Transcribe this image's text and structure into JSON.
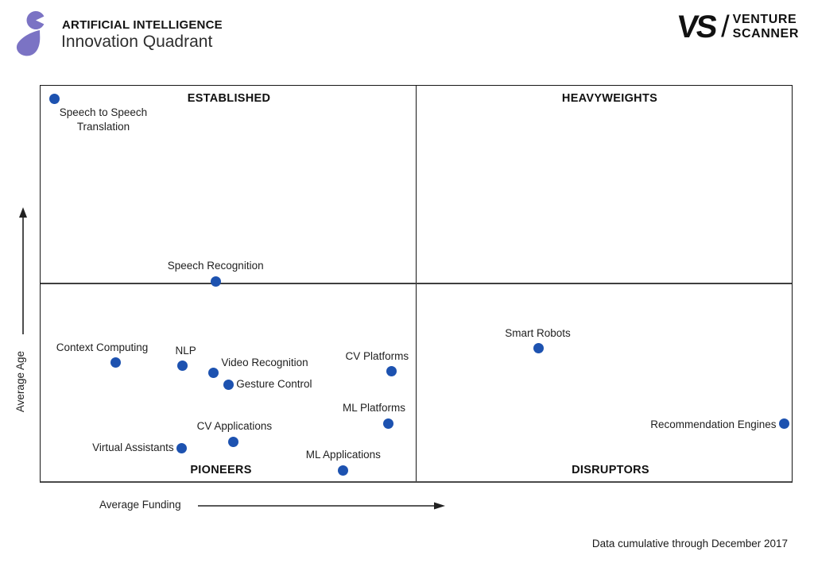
{
  "header": {
    "category": "ARTIFICIAL INTELLIGENCE",
    "title": "Innovation Quadrant",
    "logo_color": "#7b73c4",
    "vs_logo": {
      "mark": "VS",
      "slash": "/",
      "line1": "VENTURE",
      "line2": "SCANNER"
    }
  },
  "chart_data": {
    "type": "scatter",
    "title": "Artificial Intelligence Innovation Quadrant",
    "xlabel": "Average Funding",
    "ylabel": "Average Age",
    "xlim": [
      0,
      100
    ],
    "ylim": [
      0,
      100
    ],
    "x_divider": 50,
    "y_divider": 50,
    "grid": false,
    "legend": "none",
    "point_color": "#1d52b0",
    "quadrants": [
      {
        "position": "top-left",
        "label": "ESTABLISHED"
      },
      {
        "position": "top-right",
        "label": "HEAVYWEIGHTS"
      },
      {
        "position": "bottom-left",
        "label": "PIONEERS"
      },
      {
        "position": "bottom-right",
        "label": "DISRUPTORS"
      }
    ],
    "points": [
      {
        "label": "Speech to Speech Translation",
        "label_lines": [
          "Speech to Speech",
          "Translation"
        ],
        "x": 1.9,
        "y": 96.6,
        "placement": "below",
        "dx": 61
      },
      {
        "label": "Speech Recognition",
        "x": 23.3,
        "y": 50.6,
        "placement": "above",
        "dx": 0
      },
      {
        "label": "Context Computing",
        "x": 10.0,
        "y": 30.0,
        "placement": "above",
        "dx": -17
      },
      {
        "label": "NLP",
        "x": 18.9,
        "y": 29.2,
        "placement": "above",
        "dx": 4
      },
      {
        "label": "Video Recognition",
        "x": 23.0,
        "y": 27.4,
        "placement": "right",
        "dy": -13
      },
      {
        "label": "Gesture Control",
        "x": 25.0,
        "y": 24.4,
        "placement": "right",
        "dy": 0
      },
      {
        "label": "CV Platforms",
        "x": 46.7,
        "y": 27.8,
        "placement": "above",
        "dx": -18
      },
      {
        "label": "Smart Robots",
        "x": 66.3,
        "y": 33.6,
        "placement": "above",
        "dx": -1
      },
      {
        "label": "ML Platforms",
        "x": 46.3,
        "y": 14.6,
        "placement": "above",
        "dx": -18
      },
      {
        "label": "CV Applications",
        "x": 25.7,
        "y": 10.0,
        "placement": "above",
        "dx": 1
      },
      {
        "label": "Virtual Assistants",
        "x": 18.8,
        "y": 8.4,
        "placement": "left",
        "dy": 0
      },
      {
        "label": "ML Applications",
        "x": 40.3,
        "y": 2.8,
        "placement": "above",
        "dx": 0
      },
      {
        "label": "Recommendation Engines",
        "x": 99.0,
        "y": 14.6,
        "placement": "left",
        "dy": 2
      }
    ]
  },
  "footer": {
    "note": "Data cumulative through December 2017"
  }
}
